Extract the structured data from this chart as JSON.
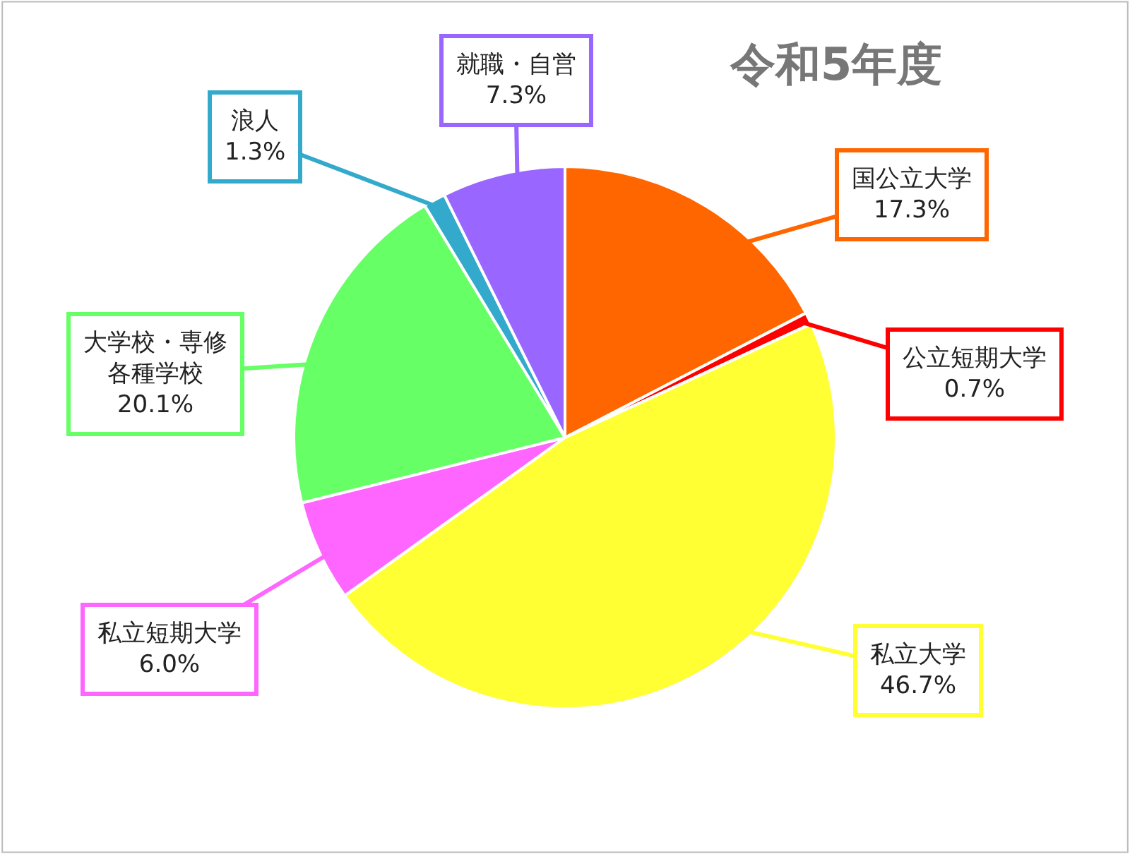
{
  "chart_data": {
    "type": "pie",
    "title": "令和5年度",
    "categories": [
      "国公立大学",
      "公立短期大学",
      "私立大学",
      "私立短期大学",
      "大学校・専修各種学校",
      "浪人",
      "就職・自営"
    ],
    "values": [
      17.3,
      0.7,
      46.7,
      6.0,
      20.1,
      1.3,
      7.3
    ],
    "value_labels": [
      "17.3%",
      "0.7%",
      "46.7%",
      "6.0%",
      "20.1%",
      "1.3%",
      "7.3%"
    ],
    "colors": [
      "#ff6600",
      "#ff0000",
      "#ffff33",
      "#ff66ff",
      "#66ff66",
      "#33aacc",
      "#9966ff"
    ]
  }
}
